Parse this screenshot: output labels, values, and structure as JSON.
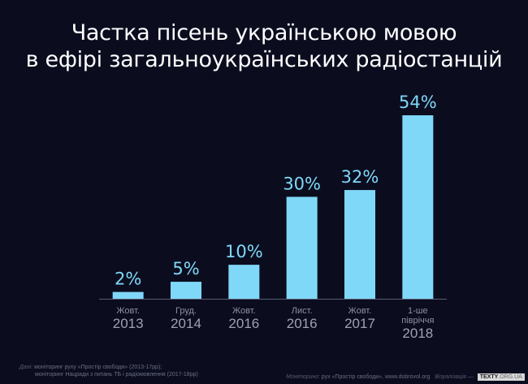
{
  "title": [
    "Частка пісень українською мовою",
    "в ефірі загальноукраїнських радіостанцій"
  ],
  "chart_data": {
    "type": "bar",
    "title": "Частка пісень українською мовою в ефірі загальноукраїнських радіостанцій",
    "categories": [
      {
        "top": "Жовт.",
        "bottom": "2013"
      },
      {
        "top": "Груд.",
        "bottom": "2014"
      },
      {
        "top": "Жовт.",
        "bottom": "2016"
      },
      {
        "top": "Лист.",
        "bottom": "2016"
      },
      {
        "top": "Жовт.",
        "bottom": "2017"
      },
      {
        "top": "1-ше півріччя",
        "bottom": "2018"
      }
    ],
    "values": [
      2,
      5,
      10,
      30,
      32,
      54
    ],
    "value_labels": [
      "2%",
      "5%",
      "10%",
      "30%",
      "32%",
      "54%"
    ],
    "ylim": [
      0,
      54
    ],
    "bar_color": "#7fd8f8",
    "grid": false,
    "legend": "none"
  },
  "footer": {
    "sources_label": "Дані:",
    "sources": [
      "моніторинг руху «Простір свободи» (2013-17рр);",
      "моніторинг Нацради з питань ТБ і радіомовлення (2017-18рр)"
    ],
    "monitoring_label": "Моніторинг:",
    "monitoring_text": "рух «Простір свободи», www.dobrovol.org",
    "viz_label": "Візуалізація —",
    "logo_main": "TEXTY",
    "logo_sub": ".ORG.UA"
  }
}
